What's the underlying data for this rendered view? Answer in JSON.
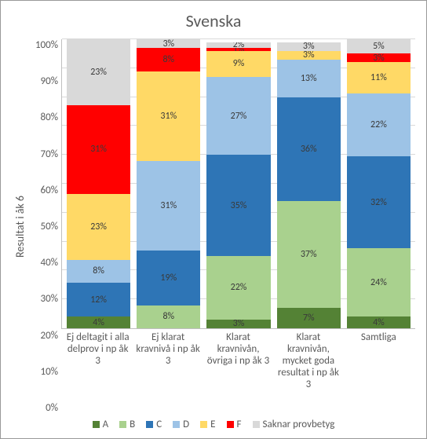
{
  "chart": {
    "type": "stacked-bar",
    "title": "Svenska",
    "ylabel": "Resultat i åk 6",
    "ylim": [
      0,
      100
    ],
    "ytick_step": 10,
    "ytick_labels": [
      "0%",
      "10%",
      "20%",
      "30%",
      "40%",
      "50%",
      "60%",
      "70%",
      "80%",
      "90%",
      "100%"
    ],
    "grid_color": "#d9d9d9",
    "axis_color": "#bfbfbf",
    "background": "#ffffff",
    "label_fontsize": 13,
    "title_fontsize": 22,
    "datalabel_fontsize": 12,
    "series": [
      {
        "name": "A",
        "color": "#548235"
      },
      {
        "name": "B",
        "color": "#a9d18e"
      },
      {
        "name": "C",
        "color": "#2e75b6"
      },
      {
        "name": "D",
        "color": "#9dc3e6"
      },
      {
        "name": "E",
        "color": "#ffd966"
      },
      {
        "name": "F",
        "color": "#ff0000"
      },
      {
        "name": "Saknar provbetyg",
        "color": "#d9d9d9"
      }
    ],
    "categories": [
      {
        "label": "Ej deltagit i alla delprov i np åk 3",
        "values": [
          4,
          0,
          12,
          8,
          23,
          31,
          23
        ],
        "show": [
          "4%",
          "0%",
          "12%",
          "8%",
          "23%",
          "31%",
          "23%"
        ]
      },
      {
        "label": "Ej klarat kravnivå i np åk 3",
        "values": [
          0,
          8,
          19,
          31,
          31,
          8,
          3
        ],
        "show": [
          "0%",
          "8%",
          "19%",
          "31%",
          "31%",
          "8%",
          "3%"
        ]
      },
      {
        "label": "Klarat kravnivån, övriga i np åk 3",
        "values": [
          3,
          22,
          35,
          27,
          9,
          1,
          2
        ],
        "show": [
          "3%",
          "22%",
          "35%",
          "27%",
          "9%",
          "1%",
          "2%"
        ]
      },
      {
        "label": "Klarat kravnivån, mycket goda resultat i np åk 3",
        "values": [
          7,
          37,
          36,
          13,
          3,
          0,
          3
        ],
        "show": [
          "7%",
          "37%",
          "36%",
          "13%",
          "3%",
          "0%",
          "3%"
        ]
      },
      {
        "label": "Samtliga",
        "values": [
          4,
          24,
          32,
          22,
          11,
          3,
          5
        ],
        "show": [
          "4%",
          "24%",
          "32%",
          "22%",
          "11%",
          "3%",
          "5%"
        ]
      }
    ]
  }
}
